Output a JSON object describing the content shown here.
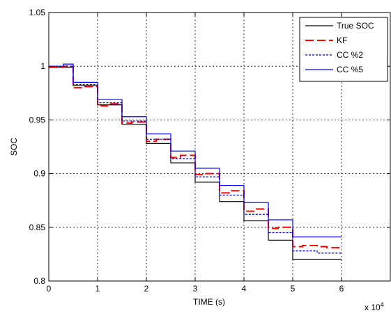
{
  "chart_data": {
    "type": "line",
    "title": "",
    "xlabel": "TIME (s)",
    "ylabel": "SOC",
    "x_exponent_label": "x 10",
    "x_exponent_sup": "4",
    "xlim": [
      0,
      7
    ],
    "ylim": [
      0.8,
      1.05
    ],
    "x_ticks": [
      0,
      1,
      2,
      3,
      4,
      5,
      6
    ],
    "x_tick_labels": [
      "0",
      "1",
      "2",
      "3",
      "4",
      "5",
      "6"
    ],
    "y_ticks": [
      0.8,
      0.85,
      0.9,
      0.95,
      1,
      1.05
    ],
    "y_tick_labels": [
      "0.8",
      "0.85",
      "0.9",
      "0.95",
      "1",
      "1.05"
    ],
    "grid": true,
    "legend_position": "top-right",
    "series": [
      {
        "name": "True SOC",
        "color": "#000000",
        "style": "solid",
        "x": [
          0,
          0.3,
          0.5,
          0.7,
          1.0,
          1.2,
          1.5,
          1.7,
          2.0,
          2.2,
          2.5,
          2.7,
          3.0,
          3.2,
          3.5,
          3.7,
          4.0,
          4.2,
          4.5,
          4.7,
          5.0,
          5.2,
          5.5,
          5.7,
          6.0
        ],
        "y": [
          0.999,
          0.999,
          0.982,
          0.982,
          0.964,
          0.964,
          0.946,
          0.946,
          0.928,
          0.928,
          0.91,
          0.91,
          0.892,
          0.892,
          0.874,
          0.874,
          0.856,
          0.856,
          0.838,
          0.838,
          0.82,
          0.82,
          0.82,
          0.82,
          0.82
        ]
      },
      {
        "name": "KF",
        "color": "#ff0000",
        "style": "dashed",
        "x": [
          0,
          0.3,
          0.5,
          0.7,
          1.0,
          1.2,
          1.5,
          1.7,
          2.0,
          2.2,
          2.5,
          2.7,
          3.0,
          3.2,
          3.5,
          3.7,
          4.0,
          4.2,
          4.5,
          4.7,
          5.0,
          5.2,
          5.5,
          5.7,
          6.0
        ],
        "y": [
          0.999,
          1.0,
          0.98,
          0.981,
          0.963,
          0.965,
          0.947,
          0.948,
          0.93,
          0.932,
          0.915,
          0.917,
          0.899,
          0.9,
          0.882,
          0.884,
          0.865,
          0.867,
          0.849,
          0.85,
          0.832,
          0.833,
          0.832,
          0.831,
          0.831
        ]
      },
      {
        "name": "CC %2",
        "color": "#0000cc",
        "style": "dotted",
        "x": [
          0,
          0.3,
          0.5,
          0.7,
          1.0,
          1.2,
          1.5,
          1.7,
          2.0,
          2.2,
          2.5,
          2.7,
          3.0,
          3.2,
          3.5,
          3.7,
          4.0,
          4.2,
          4.5,
          4.7,
          5.0,
          5.2,
          5.5,
          5.7,
          6.0
        ],
        "y": [
          1.0,
          1.0,
          0.983,
          0.983,
          0.966,
          0.966,
          0.949,
          0.949,
          0.932,
          0.932,
          0.914,
          0.914,
          0.897,
          0.897,
          0.88,
          0.88,
          0.862,
          0.862,
          0.845,
          0.845,
          0.828,
          0.828,
          0.826,
          0.826,
          0.826
        ]
      },
      {
        "name": "CC %5",
        "color": "#0000ff",
        "style": "solid",
        "x": [
          0,
          0.3,
          0.5,
          0.7,
          1.0,
          1.2,
          1.5,
          1.7,
          2.0,
          2.2,
          2.5,
          2.7,
          3.0,
          3.2,
          3.5,
          3.7,
          4.0,
          4.2,
          4.5,
          4.7,
          5.0,
          5.2,
          5.5,
          5.7,
          6.0
        ],
        "y": [
          1.0,
          1.002,
          0.985,
          0.985,
          0.969,
          0.969,
          0.953,
          0.953,
          0.937,
          0.937,
          0.921,
          0.921,
          0.905,
          0.905,
          0.889,
          0.889,
          0.873,
          0.873,
          0.857,
          0.857,
          0.841,
          0.841,
          0.841,
          0.841,
          0.841
        ]
      }
    ]
  }
}
